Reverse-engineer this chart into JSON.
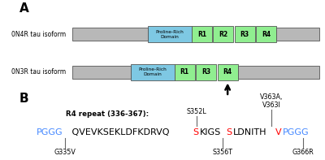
{
  "panel_A_label": "A",
  "panel_B_label": "B",
  "isoform1_label": "0N4R tau isoform",
  "isoform2_label": "0N3R tau isoform",
  "proline_rich": "Proline-Rich\nDomain",
  "repeats_4R": [
    "R1",
    "R2",
    "R3",
    "R4"
  ],
  "repeats_3R": [
    "R1",
    "R3",
    "R4"
  ],
  "gray_color": "#b8b8b8",
  "blue_color": "#7ec8e3",
  "green_color": "#90ee90",
  "r4_repeat_label": "R4 repeat (336-367):",
  "seg_blue": "#4488ff",
  "seg_red": "#ff0000",
  "seg_black": "#000000",
  "segments": [
    [
      "PGGG",
      "#4488ff"
    ],
    [
      " QVEVKSEKLDFKDRVQ",
      "#000000"
    ],
    [
      "S",
      "#ff0000"
    ],
    [
      "KIGS",
      "#000000"
    ],
    [
      "S",
      "#ff0000"
    ],
    [
      "LDNITH",
      "#000000"
    ],
    [
      "V",
      "#ff0000"
    ],
    [
      "PGGG",
      "#4488ff"
    ]
  ],
  "bg_color": "#ffffff"
}
